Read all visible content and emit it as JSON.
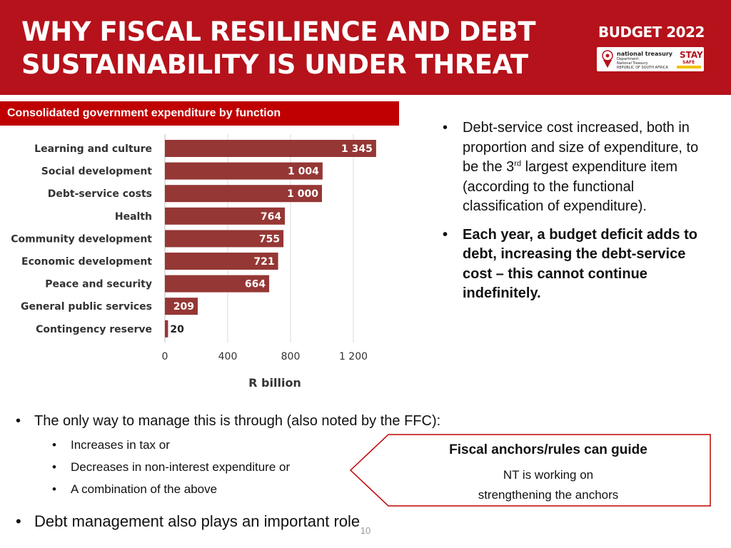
{
  "header": {
    "title_line1": "WHY FISCAL RESILIENCE AND DEBT",
    "title_line2": "SUSTAINABILITY IS UNDER THREAT",
    "budget_logo": "BUDGET 2022",
    "nt_logo_name": "national treasury",
    "nt_logo_sub1": "Department:",
    "nt_logo_sub2": "National Treasury",
    "nt_logo_sub3": "REPUBLIC OF SOUTH AFRICA",
    "stay_safe_line1": "STAY",
    "stay_safe_line2": "SAFE",
    "accent_color": "#b5121b"
  },
  "chart_label": "Consolidated government expenditure by function",
  "chart_data": {
    "type": "bar",
    "orientation": "horizontal",
    "categories": [
      "Learning and culture",
      "Social development",
      "Debt-service costs",
      "Health",
      "Community development",
      "Economic development",
      "Peace and security",
      "General public services",
      "Contingency reserve"
    ],
    "values": [
      1345,
      1004,
      1000,
      764,
      755,
      721,
      664,
      209,
      20
    ],
    "value_labels": [
      "1 345",
      "1 004",
      "1 000",
      "764",
      "755",
      "721",
      "664",
      "209",
      "20"
    ],
    "xticks": [
      0,
      400,
      800,
      1200
    ],
    "xtick_labels": [
      "0",
      "400",
      "800",
      "1 200"
    ],
    "xlim": [
      0,
      1400
    ],
    "xlabel": "R billion",
    "title": "",
    "ylabel": "",
    "grid": "vertical",
    "bar_color": "#953735"
  },
  "right_bullets": {
    "b1_text_a": "Debt-service cost increased, both in proportion and size of expenditure, to be the 3",
    "b1_sup": "rd",
    "b1_text_b": " largest expenditure item (according to the functional classification of expenditure).",
    "b2": "Each year, a budget deficit adds to debt, increasing the debt-service cost – this cannot continue indefinitely."
  },
  "bottom": {
    "main": "The only way to manage this is through (also noted by the FFC):",
    "subs": [
      "Increases in tax or",
      "Decreases in non-interest expenditure or",
      "A combination of the above"
    ],
    "debt": "Debt management also plays an important role"
  },
  "callout": {
    "title": "Fiscal anchors/rules can guide",
    "line1": "NT is working on",
    "line2": "strengthening the anchors",
    "border_color": "#c00000"
  },
  "page_number": "10"
}
